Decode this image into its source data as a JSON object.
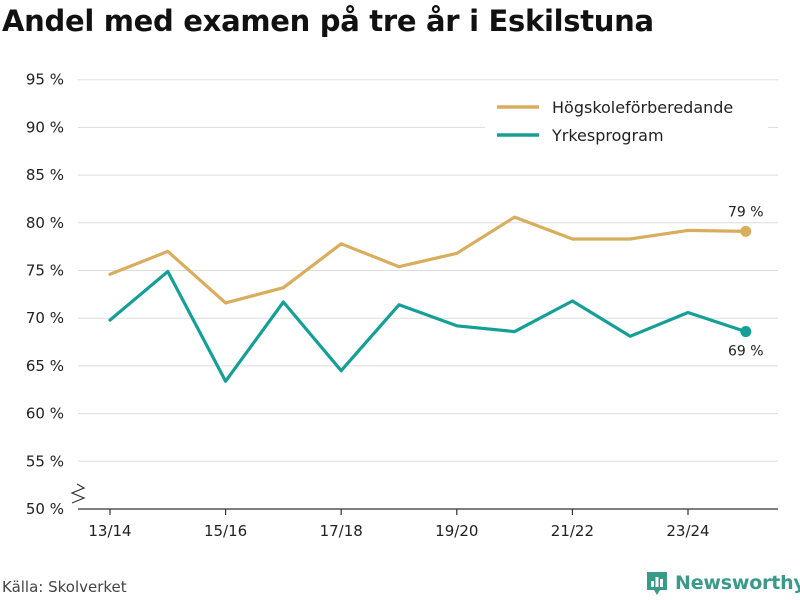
{
  "title": "Andel med examen på tre år i Eskilstuna",
  "source": "Källa: Skolverket",
  "brand": {
    "name": "Newsworthy",
    "icon": "newsworthy-logo-icon"
  },
  "colors": {
    "series1": "#d9ad5e",
    "series2": "#169f96",
    "grid": "#dddddd",
    "axis": "#333333",
    "brand": "#3a9a8a"
  },
  "chart_data": {
    "type": "line",
    "title": "Andel med examen på tre år i Eskilstuna",
    "x": [
      "13/14",
      "14/15",
      "15/16",
      "16/17",
      "17/18",
      "18/19",
      "19/20",
      "20/21",
      "21/22",
      "22/23",
      "23/24",
      "24/25"
    ],
    "x_tick_labels": [
      "13/14",
      "15/16",
      "17/18",
      "19/20",
      "21/22",
      "23/24"
    ],
    "y_ticks": [
      50,
      55,
      60,
      65,
      70,
      75,
      80,
      85,
      90,
      95
    ],
    "y_tick_labels": [
      "50 %",
      "55 %",
      "60 %",
      "65 %",
      "70 %",
      "75 %",
      "80 %",
      "85 %",
      "90 %",
      "95 %"
    ],
    "ylim": [
      50,
      95
    ],
    "y_axis_break": true,
    "grid": true,
    "legend_position": "top-right",
    "series": [
      {
        "name": "Högskoleförberedande",
        "values": [
          74.6,
          77.0,
          71.6,
          73.2,
          77.8,
          75.4,
          76.8,
          80.6,
          78.3,
          78.3,
          79.2,
          79.1
        ],
        "end_label": "79 %"
      },
      {
        "name": "Yrkesprogram",
        "values": [
          69.8,
          74.9,
          63.4,
          71.7,
          64.5,
          71.4,
          69.2,
          68.6,
          71.8,
          68.1,
          70.6,
          68.6
        ],
        "end_label": "69 %"
      }
    ]
  }
}
